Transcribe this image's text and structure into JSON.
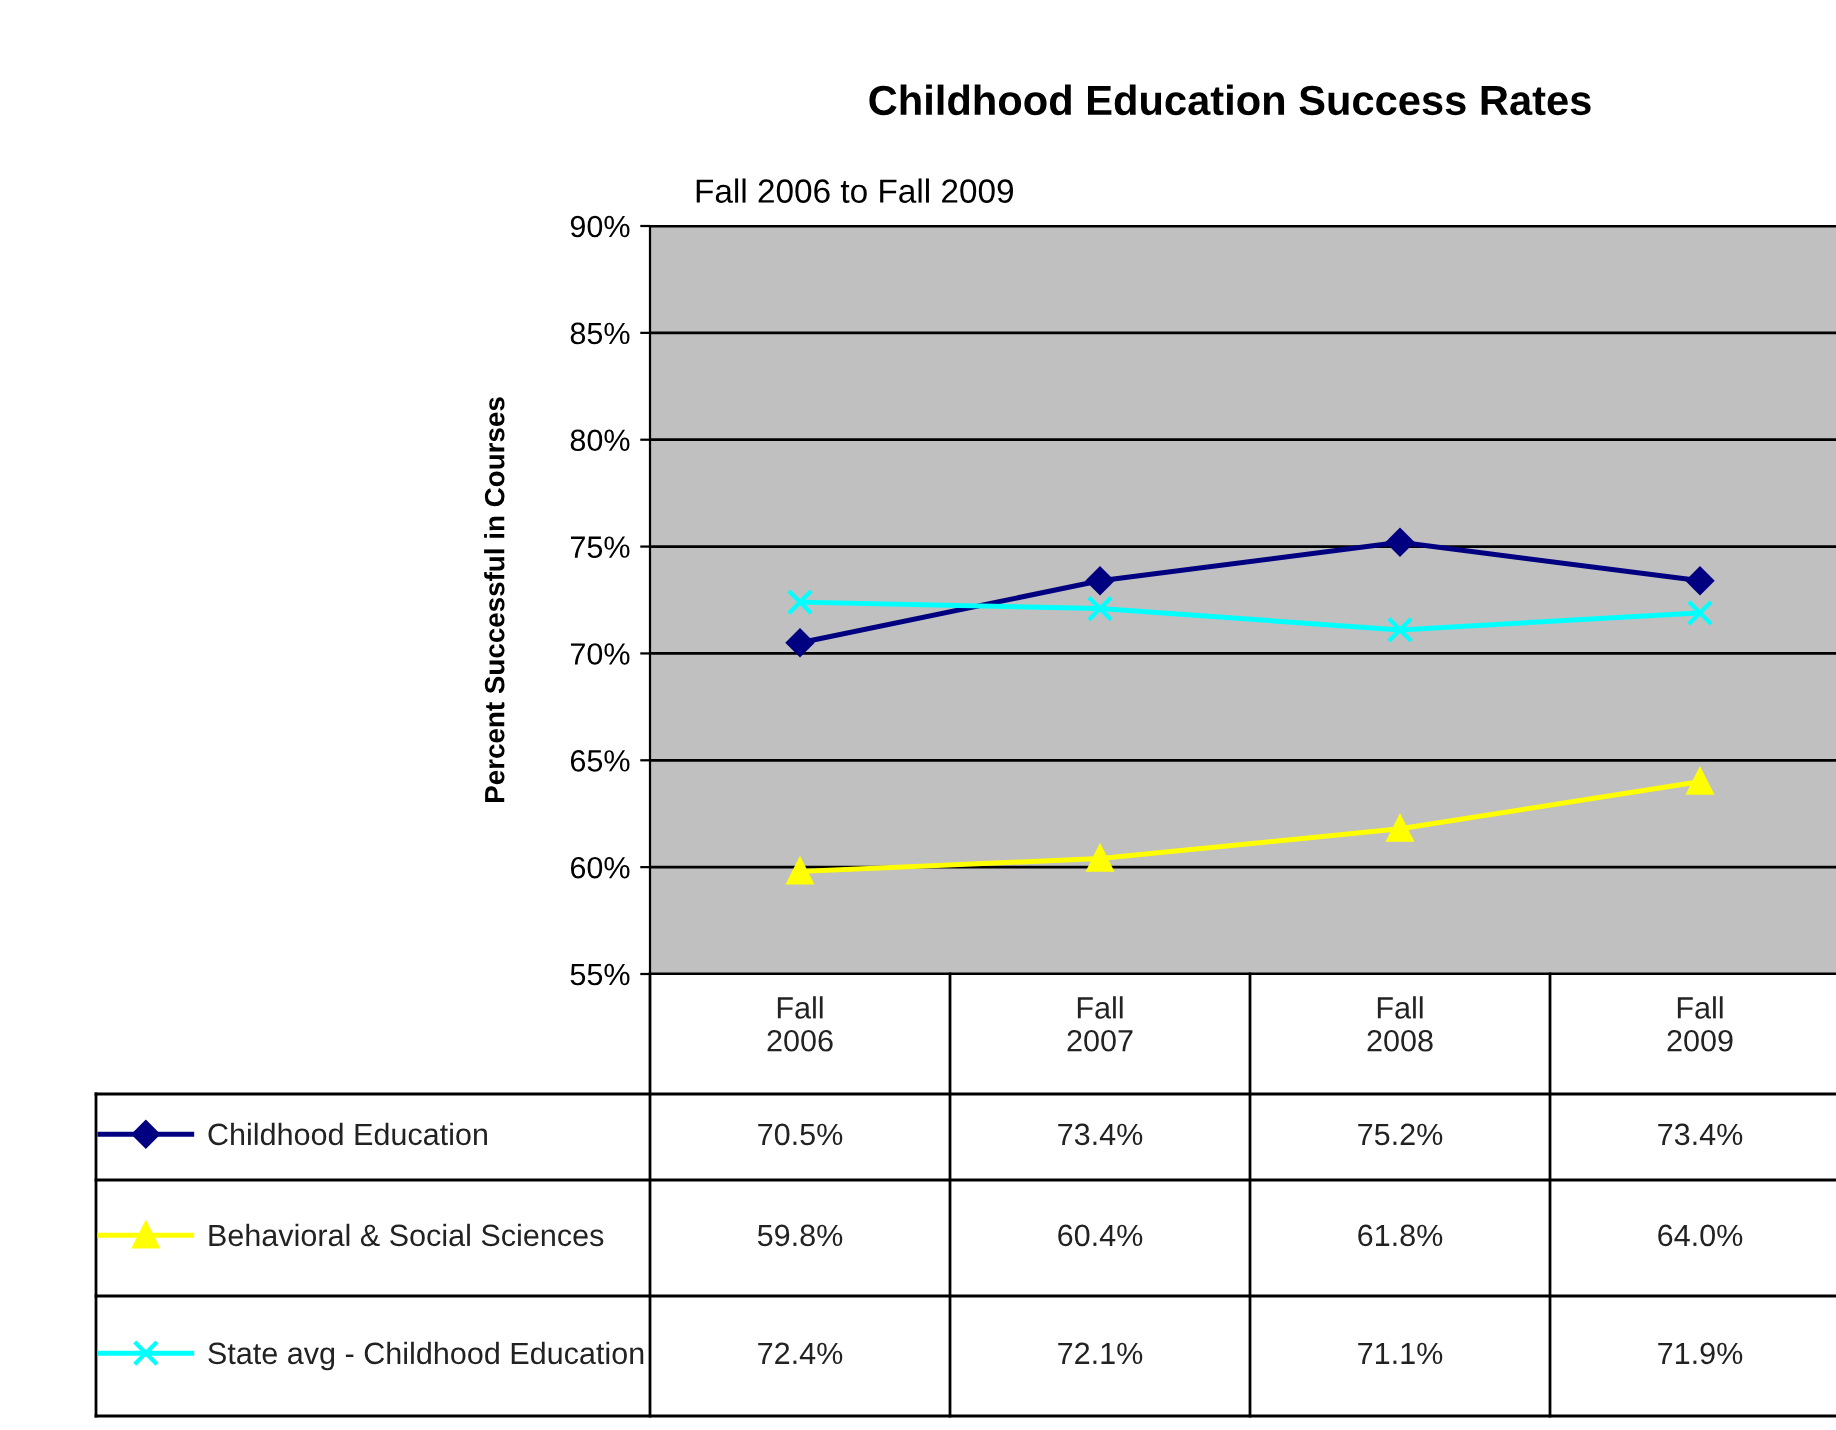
{
  "chart_data": {
    "type": "line",
    "title": "Childhood Education Success Rates",
    "subtitle": "Fall 2006 to Fall 2009",
    "ylabel": "Percent Successful in Courses",
    "categories": [
      "Fall\n2006",
      "Fall\n2007",
      "Fall\n2008",
      "Fall\n2009"
    ],
    "series": [
      {
        "name": "Childhood Education",
        "color": "#000080",
        "marker": "diamond",
        "values": [
          70.5,
          73.4,
          75.2,
          73.4
        ],
        "value_labels": [
          "70.5%",
          "73.4%",
          "75.2%",
          "73.4%"
        ]
      },
      {
        "name": "Behavioral & Social Sciences",
        "color": "#ffff00",
        "marker": "triangle",
        "values": [
          59.8,
          60.4,
          61.8,
          64.0
        ],
        "value_labels": [
          "59.8%",
          "60.4%",
          "61.8%",
          "64.0%"
        ]
      },
      {
        "name": "State avg - Childhood Education",
        "color": "#00ffff",
        "marker": "cross",
        "values": [
          72.4,
          72.1,
          71.1,
          71.9
        ],
        "value_labels": [
          "72.4%",
          "72.1%",
          "71.1%",
          "71.9%"
        ]
      }
    ],
    "ylim": [
      55,
      90
    ],
    "yticks": [
      {
        "value": 55,
        "label": "55%"
      },
      {
        "value": 60,
        "label": "60%"
      },
      {
        "value": 65,
        "label": "65%"
      },
      {
        "value": 70,
        "label": "70%"
      },
      {
        "value": 75,
        "label": "75%"
      },
      {
        "value": 80,
        "label": "80%"
      },
      {
        "value": 85,
        "label": "85%"
      },
      {
        "value": 90,
        "label": "90%"
      }
    ],
    "grid": "y",
    "legend": "bottom"
  }
}
